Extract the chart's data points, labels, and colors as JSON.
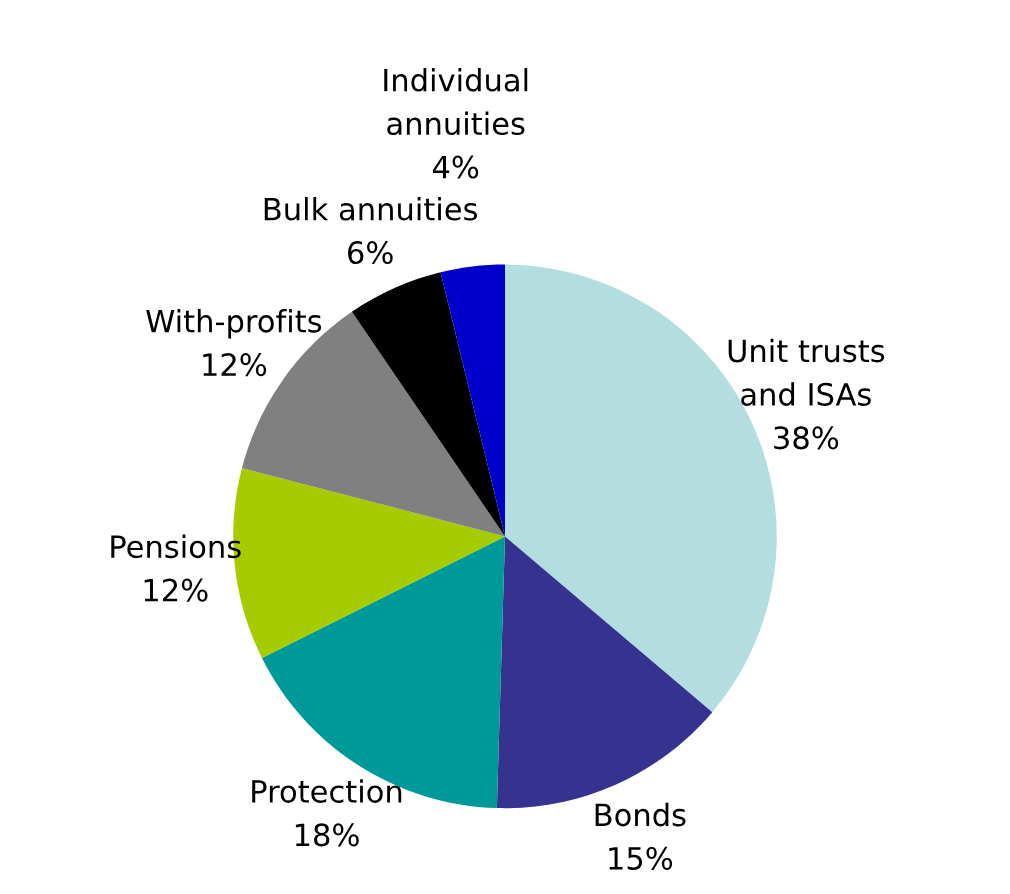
{
  "chart_data": {
    "type": "pie",
    "categories": [
      "Unit trusts\nand ISAs",
      "Bonds",
      "Protection",
      "Pensions",
      "With-profits",
      "Bulk annuities",
      "Individual\nannuities"
    ],
    "values": [
      38,
      15,
      18,
      12,
      12,
      6,
      4
    ],
    "value_labels": [
      "38%",
      "15%",
      "18%",
      "12%",
      "12%",
      "6%",
      "4%"
    ],
    "colors": [
      "#b4dde0",
      "#35338f",
      "#009999",
      "#a6cc00",
      "#808080",
      "#000000",
      "#0000cc"
    ],
    "legend": false
  }
}
